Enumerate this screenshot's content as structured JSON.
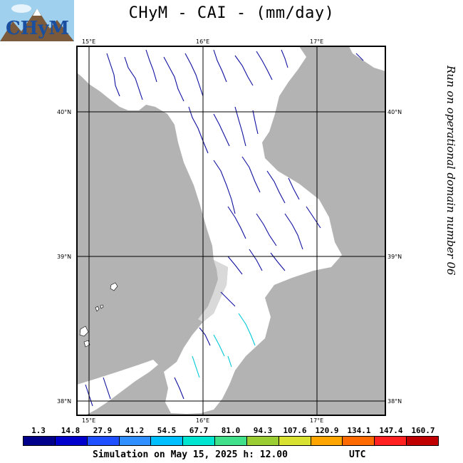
{
  "title": "CHyM - CAI - (mm/day)",
  "logo_text": "CHyM",
  "side_note": "Run on operational domain number 06",
  "grid": {
    "lon_labels": [
      "15°E",
      "16°E",
      "17°E"
    ],
    "lat_labels": [
      "40°N",
      "39°N",
      "38°N"
    ]
  },
  "colorbar": {
    "labels": [
      "1.3",
      "14.8",
      "27.9",
      "41.2",
      "54.5",
      "67.7",
      "81.0",
      "94.3",
      "107.6",
      "120.9",
      "134.1",
      "147.4",
      "160.7"
    ],
    "colors": [
      "#00008b",
      "#0000cd",
      "#1e50ff",
      "#2f8fff",
      "#00bfff",
      "#00e5d0",
      "#40e08a",
      "#9acd32",
      "#d8e030",
      "#ffa500",
      "#ff6a00",
      "#ff2020",
      "#c00000"
    ]
  },
  "footer": {
    "simulation": "Simulation on May 15, 2025 h: 12.00",
    "timezone": "UTC"
  },
  "colors": {
    "sea": "#b3b3b3",
    "land": "#ffffff",
    "river": "#1010a0",
    "river_light": "#00c8d8"
  }
}
